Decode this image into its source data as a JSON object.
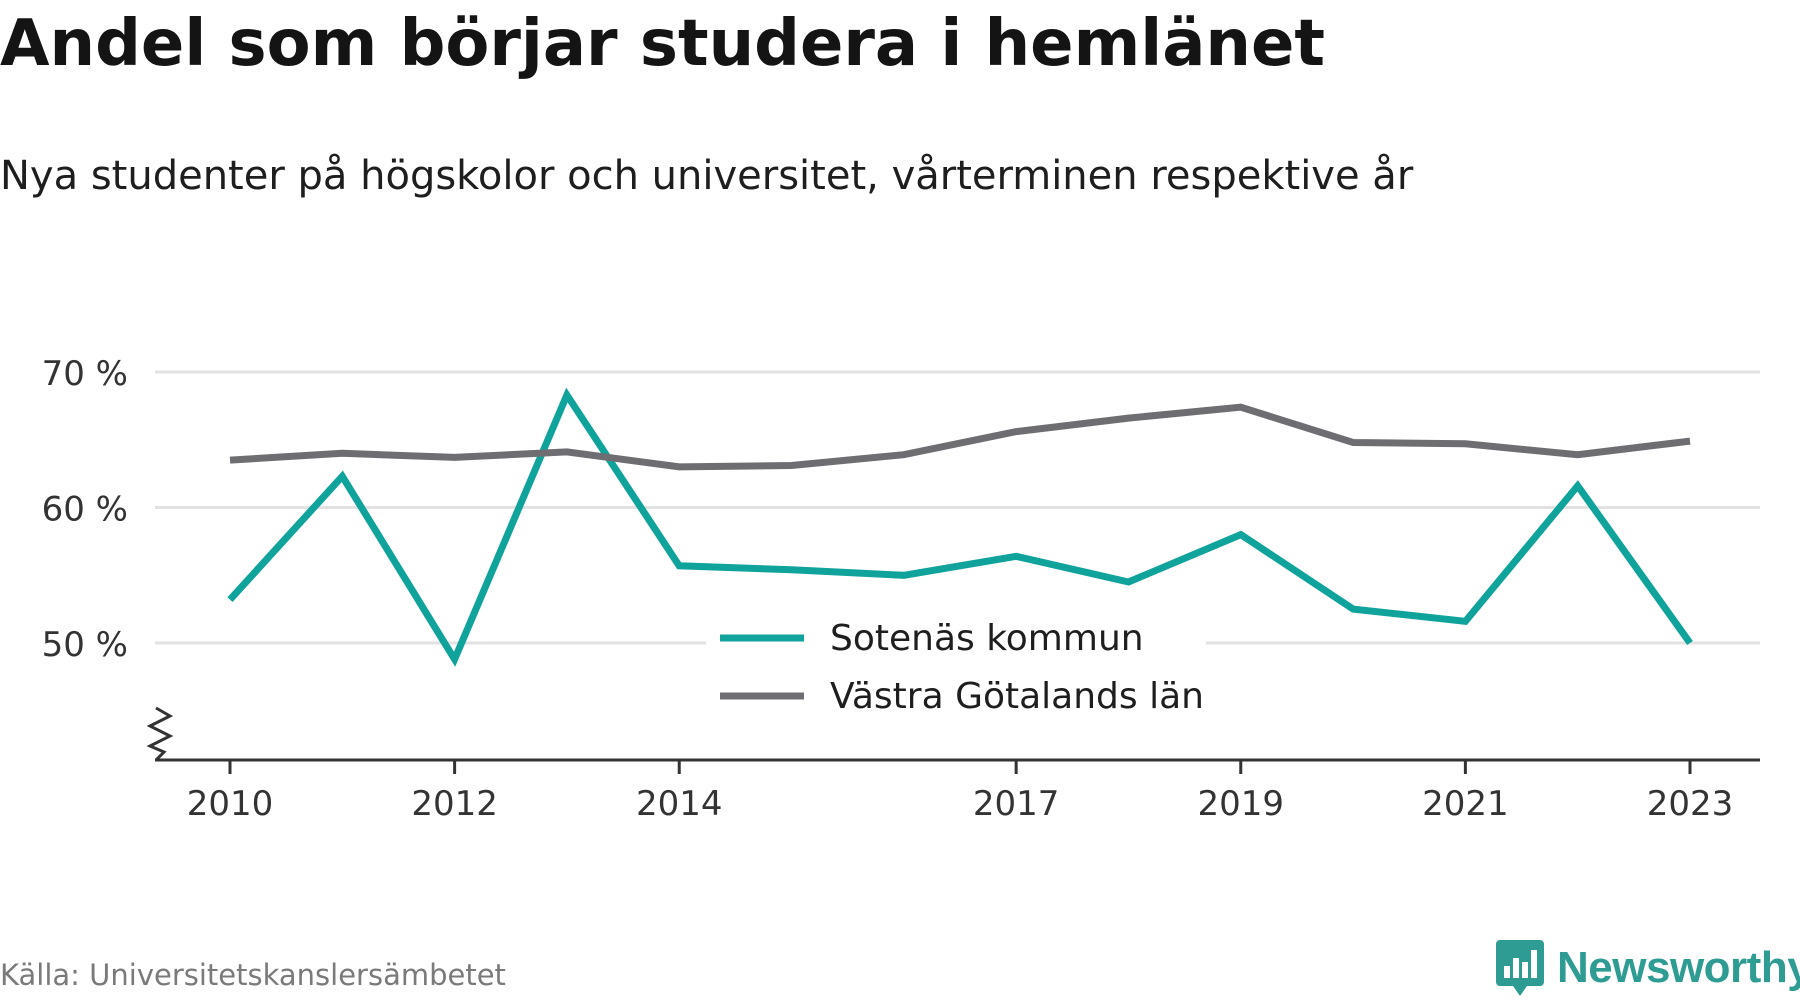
{
  "title": "Andel som börjar studera i hemlänet",
  "subtitle": "Nya studenter på högskolor och universitet, vårterminen respektive år",
  "source": "Källa: Universitetskanslersämbetet",
  "brand": {
    "name": "Newsworthy",
    "icon": "newsworthy-logo-icon"
  },
  "colors": {
    "accent": "#0fa39b",
    "secondary": "#6e6d72",
    "grid": "#e2e2e2",
    "axis": "#333333",
    "brand": "#2f9c94"
  },
  "chart_data": {
    "type": "line",
    "x": [
      2010,
      2011,
      2012,
      2013,
      2014,
      2015,
      2016,
      2017,
      2018,
      2019,
      2020,
      2021,
      2022,
      2023
    ],
    "x_tick_labels": [
      "2010",
      "2012",
      "2014",
      "2017",
      "2019",
      "2021",
      "2023"
    ],
    "y_ticks": [
      50,
      60,
      70
    ],
    "y_tick_labels": [
      "50 %",
      "60 %",
      "70 %"
    ],
    "ylim": [
      41,
      70
    ],
    "y_axis_break": true,
    "grid": true,
    "legend_position": "center",
    "series": [
      {
        "name": "Sotenäs kommun",
        "color": "#0fa39b",
        "values": [
          53.2,
          62.3,
          48.8,
          68.3,
          55.7,
          55.4,
          55.0,
          56.4,
          54.5,
          58.0,
          52.5,
          51.6,
          61.6,
          50.0
        ]
      },
      {
        "name": "Västra Götalands län",
        "color": "#6e6d72",
        "values": [
          63.5,
          64.0,
          63.7,
          64.1,
          63.0,
          63.1,
          63.9,
          65.6,
          66.6,
          67.4,
          64.8,
          64.7,
          63.9,
          64.9
        ]
      }
    ]
  }
}
